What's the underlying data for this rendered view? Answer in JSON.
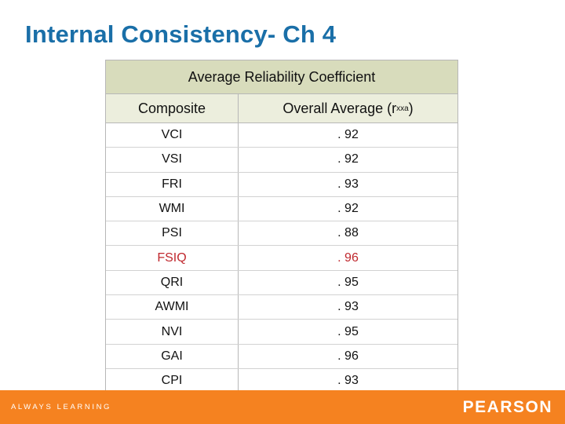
{
  "slide": {
    "title": "Internal Consistency- Ch 4"
  },
  "table": {
    "caption": "Average Reliability Coefficient",
    "col1_header": "Composite",
    "col2_header_main": "Overall Average (r",
    "col2_header_sub": "xx",
    "col2_header_sup": "a",
    "col2_header_end": ")",
    "rows": [
      {
        "composite": "VCI",
        "value": ". 92"
      },
      {
        "composite": "VSI",
        "value": ". 92"
      },
      {
        "composite": "FRI",
        "value": ". 93"
      },
      {
        "composite": "WMI",
        "value": ". 92"
      },
      {
        "composite": "PSI",
        "value": ". 88"
      },
      {
        "composite": "FSIQ",
        "value": ". 96",
        "highlight": true
      },
      {
        "composite": "QRI",
        "value": ". 95"
      },
      {
        "composite": "AWMI",
        "value": ". 93"
      },
      {
        "composite": "NVI",
        "value": ". 95"
      },
      {
        "composite": "GAI",
        "value": ". 96"
      },
      {
        "composite": "CPI",
        "value": ". 93"
      }
    ]
  },
  "footer": {
    "tagline": "ALWAYS LEARNING",
    "brand": "PEARSON"
  },
  "colors": {
    "title": "#1a6fa8",
    "header_band": "#d8dcbc",
    "highlight_text": "#c0282e",
    "footer": "#f58220"
  }
}
